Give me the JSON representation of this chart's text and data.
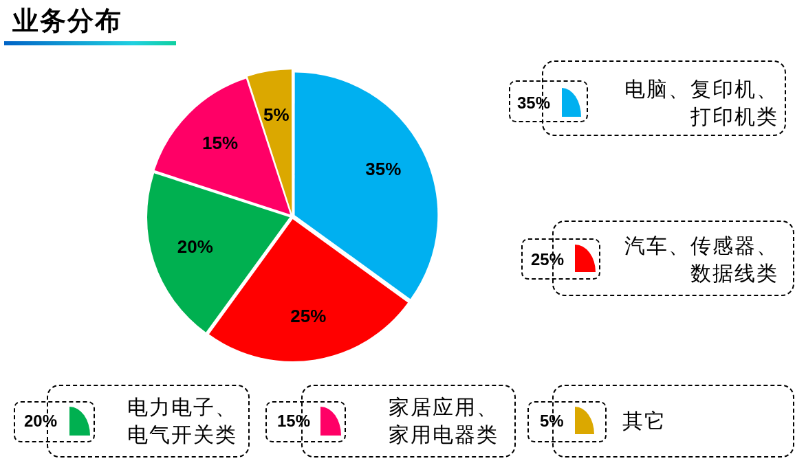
{
  "chart_data": {
    "type": "pie",
    "title": "业务分布",
    "categories": [
      "电脑、复印机、打印机类",
      "汽车、传感器、数据线类",
      "电力电子、电气开关类",
      "家居应用、家用电器类",
      "其它"
    ],
    "values": [
      35,
      25,
      20,
      15,
      5
    ],
    "colors": [
      "#00b0f0",
      "#ff0000",
      "#00b050",
      "#ff0066",
      "#dba800"
    ],
    "value_labels": [
      "35%",
      "25%",
      "20%",
      "15%",
      "5%"
    ],
    "legend": "right"
  }
}
